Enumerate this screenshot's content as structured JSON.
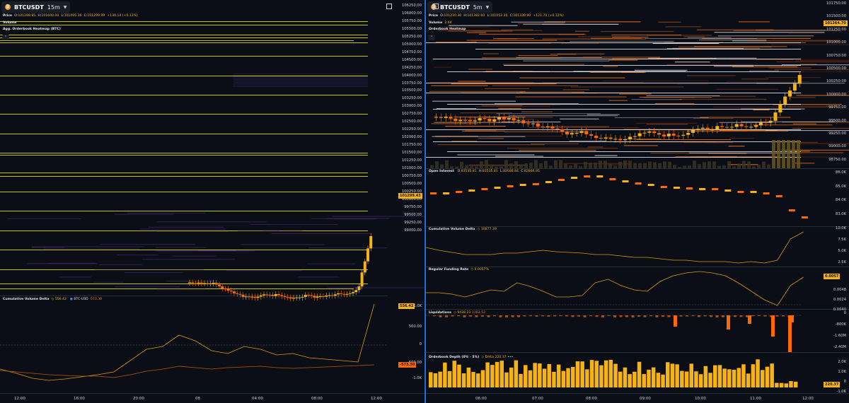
{
  "colors": {
    "bg": "#0b0e17",
    "up": "#f5b316",
    "down": "#ff6a00",
    "wall": "#e3e000",
    "cvd": "#d99a0e",
    "divider": "#1d6fd1"
  },
  "left": {
    "symbol": "BTCUSDT",
    "timeframe": "15m",
    "price_label": "Price",
    "ohlc": {
      "o_label": "O:",
      "o": "101288.85",
      "h_label": "H:",
      "h": "101600.00",
      "l_label": "L:",
      "l": "101095.36",
      "c_label": "C:",
      "c": "101299.99",
      "chg": "+130.14 (+0.13%)"
    },
    "volume_label": "Volume",
    "heatmap_label": "Agg. Orderbook Heatmap (BTC)",
    "cvd_label": "Cumulative Volume Delta",
    "cvd_value_a": "556.42",
    "cvd_value_b_label": "BTC-USD",
    "cvd_value_b": "-573.30",
    "price_ticks": [
      "106250.00",
      "106000.00",
      "105750.00",
      "105500.00",
      "105250.00",
      "105000.00",
      "104750.00",
      "104500.00",
      "104250.00",
      "104000.00",
      "103750.00",
      "103500.00",
      "103250.00",
      "103000.00",
      "102750.00",
      "102500.00",
      "102250.00",
      "102000.00",
      "101750.00",
      "101500.00",
      "101250.00",
      "101000.00",
      "100750.00",
      "100500.00",
      "100250.00",
      "100000.00",
      "99750.00",
      "99500.00",
      "99250.00",
      "99000.00"
    ],
    "price_tag": "101299.43",
    "cvd_ticks": [
      "1.0K",
      "500.00",
      "0",
      "-500.00",
      "-1.0K"
    ],
    "cvd_tag_a": "556.42",
    "cvd_tag_b": "-573.30",
    "x_ticks": [
      "12:00",
      "16:00",
      "20:00",
      "08",
      "04:00",
      "08:00",
      "12:00"
    ]
  },
  "right": {
    "symbol": "BTCUSDT",
    "timeframe": "5m",
    "price_label": "Price",
    "ohlc": {
      "o_label": "O:",
      "o": "101230.30",
      "h_label": "H:",
      "h": "101382.60",
      "l_label": "L:",
      "l": "101053.30",
      "c_label": "C:",
      "c": "101330.90",
      "chg": "+121.70 (+0.12%)"
    },
    "volume_label": "Volume",
    "volume_value": "2.6K",
    "heatmap_label": "Orderbook Heatmap",
    "price_ticks": [
      "101750.00",
      "101500.00",
      "101250.00",
      "101000.00",
      "100750.00",
      "100500.00",
      "100250.00",
      "100000.00",
      "99750.00",
      "99500.00",
      "99250.00",
      "99000.00",
      "98750.00"
    ],
    "price_tag": "101364.70",
    "oi": {
      "label": "Open Interest",
      "o_label": "O:",
      "o": "83535.81",
      "h_label": "H:",
      "h": "83535.81",
      "l_label": "L:",
      "l": "82688.84",
      "c_label": "C:",
      "c": "82866.95",
      "ticks": [
        "86.0K",
        "85.0K",
        "84.0K",
        "83.0K"
      ]
    },
    "cvd": {
      "label": "Cumulative Volume Delta",
      "value": "10877.39",
      "ticks": [
        "10.0K",
        "7.5K",
        "5.0K",
        "2.5K"
      ]
    },
    "funding": {
      "label": "Regular Funding Rate",
      "value": "0.0057%",
      "ticks": [
        "0.0048",
        "0.0024",
        "0.0040"
      ],
      "tag": "0.0057"
    },
    "liq": {
      "label": "Liquidations",
      "value_a": "9438.23",
      "value_b": "1162.53",
      "ticks": [
        "0",
        "-800K",
        "-1.60M",
        "-2.40M"
      ]
    },
    "depth": {
      "label": "Orderbook Depth (0% - 5%)",
      "delta_label": "Delta",
      "delta": "220.37",
      "ticks": [
        "2.0K",
        "1.0K",
        "0",
        "-1.0K"
      ],
      "tag": "220.37"
    },
    "x_ticks": [
      "06:00",
      "07:00",
      "08:00",
      "09:00",
      "10:00",
      "11:00",
      "12:00"
    ]
  }
}
